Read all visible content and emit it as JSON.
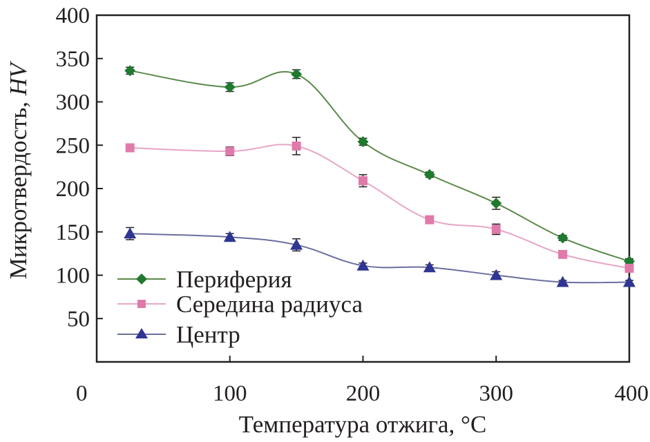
{
  "chart_data": {
    "type": "line",
    "title": "",
    "xlabel": "Температура отжига, °С",
    "ylabel_main": "Микротвердость, ",
    "ylabel_italic": "HV",
    "xlim": [
      0,
      400
    ],
    "ylim": [
      0,
      400
    ],
    "x_ticks": [
      0,
      100,
      200,
      300,
      400
    ],
    "y_ticks": [
      50,
      100,
      150,
      200,
      250,
      300,
      350,
      400
    ],
    "x": [
      25,
      100,
      150,
      200,
      250,
      300,
      350,
      400
    ],
    "legend_position": "bottom-left",
    "series": [
      {
        "name": "Периферия",
        "marker": "diamond",
        "color": "#1e7a2e",
        "line_color": "#5a8a4a",
        "values": [
          336,
          317,
          332,
          254,
          216,
          183,
          143,
          116
        ],
        "errors": [
          4,
          5,
          5,
          4,
          3,
          7,
          3,
          3
        ]
      },
      {
        "name": "Середина радиуса",
        "marker": "square",
        "color": "#e07aaa",
        "line_color": "#e8a5c5",
        "values": [
          247,
          243,
          249,
          209,
          164,
          153,
          124,
          108
        ],
        "errors": [
          3,
          5,
          10,
          7,
          3,
          6,
          3,
          3
        ]
      },
      {
        "name": "Центр",
        "marker": "triangle",
        "color": "#2e3592",
        "line_color": "#6a6e9e",
        "values": [
          148,
          144,
          135,
          111,
          109,
          100,
          92,
          92
        ],
        "errors": [
          7,
          4,
          7,
          3,
          3,
          4,
          2,
          2
        ]
      }
    ]
  }
}
